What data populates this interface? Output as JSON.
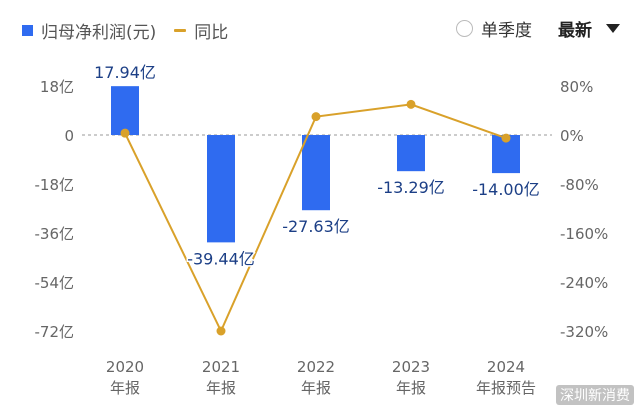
{
  "legend": {
    "profit_label": "归母净利润(元)",
    "yoy_label": "同比"
  },
  "controls": {
    "quarter_toggle": "单季度",
    "sort_label": "最新"
  },
  "colors": {
    "bar": "#2f6bf0",
    "line": "#d9a12a",
    "axis_text": "#666666",
    "label_text": "#1c3f86"
  },
  "watermark": "深圳新消费",
  "chart_data": {
    "type": "bar+line",
    "categories": [
      [
        "2020",
        "年报"
      ],
      [
        "2021",
        "年报"
      ],
      [
        "2022",
        "年报"
      ],
      [
        "2023",
        "年报"
      ],
      [
        "2024",
        "年报预告"
      ]
    ],
    "series": [
      {
        "name": "归母净利润(元)",
        "kind": "bar",
        "axis": "left",
        "values": [
          17.94,
          -39.44,
          -27.63,
          -13.29,
          -14.0
        ],
        "labels": [
          "17.94亿",
          "-39.44亿",
          "-27.63亿",
          "-13.29亿",
          "-14.00亿"
        ]
      },
      {
        "name": "同比",
        "kind": "line",
        "axis": "right",
        "values": [
          3,
          -320,
          30,
          50,
          -5
        ]
      }
    ],
    "left_axis": {
      "ticks": [
        18,
        0,
        -18,
        -36,
        -54,
        -72
      ],
      "tick_labels": [
        "18亿",
        "0",
        "-18亿",
        "-36亿",
        "-54亿",
        "-72亿"
      ],
      "range": [
        -72,
        18
      ]
    },
    "right_axis": {
      "ticks": [
        80,
        0,
        -80,
        -160,
        -240,
        -320
      ],
      "tick_labels": [
        "80%",
        "0%",
        "-80%",
        "-160%",
        "-240%",
        "-320%"
      ],
      "range": [
        -320,
        80
      ]
    },
    "zero_line": "dashed"
  }
}
